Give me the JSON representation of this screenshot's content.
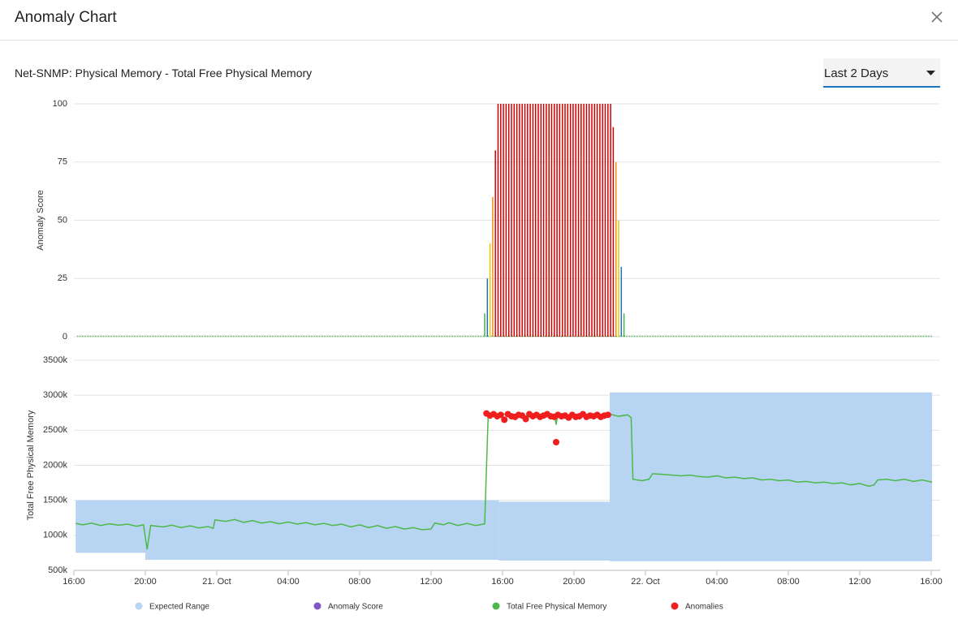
{
  "header": {
    "title": "Anomaly Chart"
  },
  "subtitle": "Net-SNMP: Physical Memory - Total Free Physical Memory",
  "period": {
    "selected": "Last 2 Days"
  },
  "chart_data": [
    {
      "type": "bar",
      "y_label": "Anomaly Score",
      "xlim": [
        0,
        48.5
      ],
      "ylim": [
        0,
        100
      ],
      "yticks": [
        0,
        25,
        50,
        75,
        100
      ],
      "grid": true,
      "series": [
        {
          "name": "Anomaly Score",
          "color": "#7e57c2",
          "color_scale": [
            {
              "min": 0,
              "color": "#4caf50"
            },
            {
              "min": 20,
              "color": "#1e73be"
            },
            {
              "min": 40,
              "color": "#e8c800"
            },
            {
              "min": 60,
              "color": "#f0901c"
            },
            {
              "min": 80,
              "color": "#d40000"
            }
          ],
          "baseline_color": "#4caf50",
          "x": [
            23.0,
            23.15,
            23.3,
            23.45,
            23.6,
            23.75,
            23.9,
            24.05,
            24.2,
            24.35,
            24.5,
            24.65,
            24.8,
            24.95,
            25.1,
            25.25,
            25.4,
            25.55,
            25.7,
            25.85,
            26.0,
            26.15,
            26.3,
            26.45,
            26.6,
            26.75,
            26.9,
            27.05,
            27.2,
            27.35,
            27.5,
            27.65,
            27.8,
            27.95,
            28.1,
            28.25,
            28.4,
            28.55,
            28.7,
            28.85,
            29.0,
            29.15,
            29.3,
            29.45,
            29.6,
            29.75,
            29.9,
            30.05,
            30.2,
            30.35,
            30.5,
            30.65,
            30.8
          ],
          "values": [
            10,
            25,
            40,
            60,
            80,
            100,
            100,
            100,
            100,
            100,
            100,
            100,
            100,
            100,
            100,
            100,
            100,
            100,
            100,
            100,
            100,
            100,
            100,
            100,
            100,
            100,
            100,
            100,
            100,
            100,
            100,
            100,
            100,
            100,
            100,
            100,
            100,
            100,
            100,
            100,
            100,
            100,
            100,
            100,
            100,
            100,
            100,
            100,
            90,
            75,
            50,
            30,
            10
          ]
        }
      ]
    },
    {
      "type": "line",
      "y_label": "Total Free Physical Memory",
      "xlim": [
        0,
        48.5
      ],
      "ylim": [
        500000,
        3500000
      ],
      "grid": true,
      "yticks": [
        {
          "value": 500000,
          "label": "500k"
        },
        {
          "value": 1000000,
          "label": "1000k"
        },
        {
          "value": 1500000,
          "label": "1500k"
        },
        {
          "value": 2000000,
          "label": "2000k"
        },
        {
          "value": 2500000,
          "label": "2500k"
        },
        {
          "value": 3000000,
          "label": "3000k"
        },
        {
          "value": 3500000,
          "label": "3500k"
        }
      ],
      "xticks": [
        {
          "value": 0,
          "label": "16:00"
        },
        {
          "value": 4,
          "label": "20:00"
        },
        {
          "value": 8,
          "label": "21. Oct"
        },
        {
          "value": 12,
          "label": "04:00"
        },
        {
          "value": 16,
          "label": "08:00"
        },
        {
          "value": 20,
          "label": "12:00"
        },
        {
          "value": 24,
          "label": "16:00"
        },
        {
          "value": 28,
          "label": "20:00"
        },
        {
          "value": 32,
          "label": "22. Oct"
        },
        {
          "value": 36,
          "label": "04:00"
        },
        {
          "value": 40,
          "label": "08:00"
        },
        {
          "value": 44,
          "label": "12:00"
        },
        {
          "value": 48,
          "label": "16:00"
        }
      ],
      "range": {
        "name": "Expected Range",
        "color": "#b7d5f2",
        "segments": [
          {
            "start": 0.1,
            "end": 4.0,
            "low": 750000,
            "high": 1500000
          },
          {
            "start": 4.0,
            "end": 23.8,
            "low": 650000,
            "high": 1500000
          },
          {
            "start": 23.8,
            "end": 30.0,
            "low": 640000,
            "high": 1480000
          },
          {
            "start": 30.0,
            "end": 48.05,
            "low": 630000,
            "high": 3040000
          }
        ]
      },
      "series": [
        {
          "name": "Total Free Physical Memory",
          "color": "#4cb848",
          "x": [
            0.1,
            0.5,
            1,
            1.5,
            2,
            2.5,
            3,
            3.5,
            3.9,
            4.1,
            4.3,
            5,
            5.5,
            6,
            6.5,
            7,
            7.5,
            7.8,
            7.9,
            8.5,
            9,
            9.5,
            10,
            10.5,
            11,
            11.5,
            12,
            12.5,
            13,
            13.5,
            14,
            14.5,
            15,
            15.5,
            16,
            16.5,
            17,
            17.5,
            18,
            18.5,
            19,
            19.5,
            20,
            20.2,
            20.7,
            21,
            21.5,
            22,
            22.5,
            23,
            23.2,
            23.5,
            24,
            24.5,
            25,
            25.5,
            26,
            26.5,
            26.9,
            27,
            27.1,
            27.5,
            28,
            28.5,
            29,
            29.5,
            30,
            30.5,
            31,
            31.2,
            31.3,
            31.8,
            32.2,
            32.4,
            33,
            33.5,
            34,
            34.5,
            35,
            35.5,
            36,
            36.5,
            37,
            37.5,
            38,
            38.5,
            39,
            39.5,
            40,
            40.5,
            41,
            41.5,
            42,
            42.5,
            43,
            43.5,
            44,
            44.5,
            44.8,
            45,
            45.5,
            46,
            46.5,
            47,
            47.5,
            48.05
          ],
          "values": [
            1170000,
            1150000,
            1175000,
            1140000,
            1165000,
            1145000,
            1160000,
            1130000,
            1150000,
            800000,
            1140000,
            1120000,
            1145000,
            1110000,
            1135000,
            1105000,
            1125000,
            1100000,
            1220000,
            1200000,
            1225000,
            1185000,
            1210000,
            1175000,
            1195000,
            1165000,
            1190000,
            1160000,
            1180000,
            1150000,
            1170000,
            1140000,
            1160000,
            1120000,
            1150000,
            1110000,
            1140000,
            1100000,
            1125000,
            1090000,
            1110000,
            1080000,
            1090000,
            1175000,
            1150000,
            1180000,
            1140000,
            1170000,
            1140000,
            1165000,
            2740000,
            2720000,
            2740000,
            2700000,
            2730000,
            2690000,
            2720000,
            2700000,
            2730000,
            2580000,
            2730000,
            2710000,
            2730000,
            2700000,
            2720000,
            2710000,
            2730000,
            2700000,
            2720000,
            2680000,
            1800000,
            1780000,
            1800000,
            1880000,
            1870000,
            1860000,
            1850000,
            1860000,
            1840000,
            1830000,
            1850000,
            1820000,
            1830000,
            1810000,
            1820000,
            1790000,
            1800000,
            1780000,
            1790000,
            1760000,
            1770000,
            1750000,
            1760000,
            1740000,
            1750000,
            1720000,
            1740000,
            1700000,
            1720000,
            1790000,
            1800000,
            1780000,
            1800000,
            1770000,
            1790000,
            1760000
          ]
        },
        {
          "name": "Anomalies",
          "type": "scatter",
          "color": "#f01e1e",
          "x": [
            23.1,
            23.3,
            23.5,
            23.7,
            23.9,
            24.1,
            24.3,
            24.5,
            24.7,
            24.9,
            25.1,
            25.3,
            25.5,
            25.7,
            25.9,
            26.1,
            26.3,
            26.5,
            26.7,
            26.9,
            27.0,
            27.1,
            27.3,
            27.5,
            27.7,
            27.9,
            28.1,
            28.3,
            28.5,
            28.7,
            28.9,
            29.1,
            29.3,
            29.5,
            29.7,
            29.9
          ],
          "values": [
            2740000,
            2710000,
            2730000,
            2700000,
            2720000,
            2650000,
            2730000,
            2700000,
            2690000,
            2720000,
            2710000,
            2660000,
            2730000,
            2700000,
            2720000,
            2690000,
            2710000,
            2730000,
            2700000,
            2690000,
            2330000,
            2720000,
            2700000,
            2710000,
            2680000,
            2720000,
            2690000,
            2700000,
            2730000,
            2690000,
            2710000,
            2700000,
            2720000,
            2690000,
            2710000,
            2720000
          ]
        }
      ]
    }
  ]
}
